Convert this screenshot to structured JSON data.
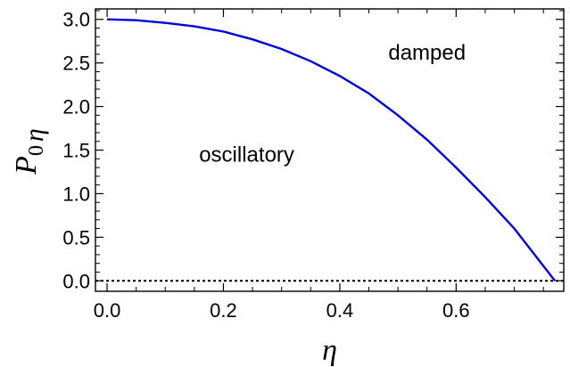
{
  "chart_data": {
    "type": "line",
    "title": "",
    "xlabel": "η",
    "ylabel": {
      "main": "P",
      "sub": "0",
      "var": "η"
    },
    "xlim": [
      -0.02,
      0.785
    ],
    "ylim": [
      -0.12,
      3.12
    ],
    "xticks": [
      0.0,
      0.2,
      0.4,
      0.6
    ],
    "xtick_labels": [
      "0.0",
      "0.2",
      "0.4",
      "0.6"
    ],
    "yticks": [
      0.0,
      0.5,
      1.0,
      1.5,
      2.0,
      2.5,
      3.0
    ],
    "ytick_labels": [
      "0.0",
      "0.5",
      "1.0",
      "1.5",
      "2.0",
      "2.5",
      "3.0"
    ],
    "grid": false,
    "legend": "none",
    "series": [
      {
        "color": "#0000dd",
        "style": "solid",
        "x": [
          0.0,
          0.05,
          0.1,
          0.15,
          0.2,
          0.25,
          0.3,
          0.35,
          0.4,
          0.45,
          0.5,
          0.55,
          0.6,
          0.65,
          0.7,
          0.75,
          0.77
        ],
        "y": [
          3.0,
          2.99,
          2.96,
          2.92,
          2.86,
          2.77,
          2.66,
          2.52,
          2.35,
          2.15,
          1.9,
          1.62,
          1.3,
          0.96,
          0.6,
          0.17,
          0.0
        ]
      },
      {
        "color": "#000000",
        "style": "dotted",
        "x": [
          -0.02,
          0.785
        ],
        "y": [
          0.0,
          0.0
        ]
      }
    ],
    "annotations": [
      {
        "text": "damped",
        "x": 0.55,
        "y": 2.62
      },
      {
        "text": "oscillatory",
        "x": 0.24,
        "y": 1.45
      }
    ]
  }
}
